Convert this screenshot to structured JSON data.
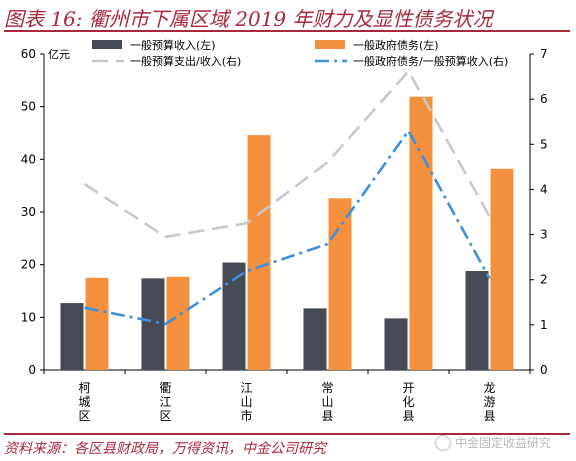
{
  "title": "图表 16: 衢州市下属区域 2019 年财力及显性债务状况",
  "source": "资料来源：各区县财政局，万得资讯，中金公司研究",
  "watermark": "中金固定收益研究",
  "colors": {
    "title": "#a8283c",
    "bar_left": "#454a54",
    "bar_right": "#f5913e",
    "line_spend": "#c8c8c8",
    "line_debt": "#3d8fe0"
  },
  "chart_data": {
    "type": "bar",
    "categories": [
      "柯城区",
      "衢江区",
      "江山市",
      "常山县",
      "开化县",
      "龙游县"
    ],
    "category_labels": [
      [
        "柯",
        "城",
        "区"
      ],
      [
        "衢",
        "江",
        "区"
      ],
      [
        "江",
        "山",
        "市"
      ],
      [
        "常",
        "山",
        "县"
      ],
      [
        "开",
        "化",
        "县"
      ],
      [
        "龙",
        "游",
        "县"
      ]
    ],
    "ylabel": "亿元",
    "ylim": [
      0,
      60
    ],
    "y2lim": [
      0,
      7
    ],
    "yticks": [
      "0",
      "10",
      "20",
      "30",
      "40",
      "50",
      "60"
    ],
    "y2ticks": [
      "0",
      "1",
      "2",
      "3",
      "4",
      "5",
      "6",
      "7"
    ],
    "legend_position": "top",
    "grid": false,
    "series": [
      {
        "name": "一般预算收入(左)",
        "type": "bar",
        "axis": "left",
        "values": [
          12.7,
          17.4,
          20.4,
          11.7,
          9.8,
          18.8
        ]
      },
      {
        "name": "一般政府债务(左)",
        "type": "bar",
        "axis": "left",
        "values": [
          17.5,
          17.7,
          44.6,
          32.6,
          51.9,
          38.2
        ]
      },
      {
        "name": "一般预算支出/收入(右)",
        "type": "line",
        "axis": "right",
        "style": "dashed",
        "values": [
          4.12,
          2.95,
          3.25,
          4.6,
          6.62,
          3.4
        ]
      },
      {
        "name": "一般政府债务/一般预算收入(右)",
        "type": "line",
        "axis": "right",
        "style": "dashdot",
        "values": [
          1.38,
          1.02,
          2.19,
          2.79,
          5.3,
          2.03
        ]
      }
    ]
  }
}
